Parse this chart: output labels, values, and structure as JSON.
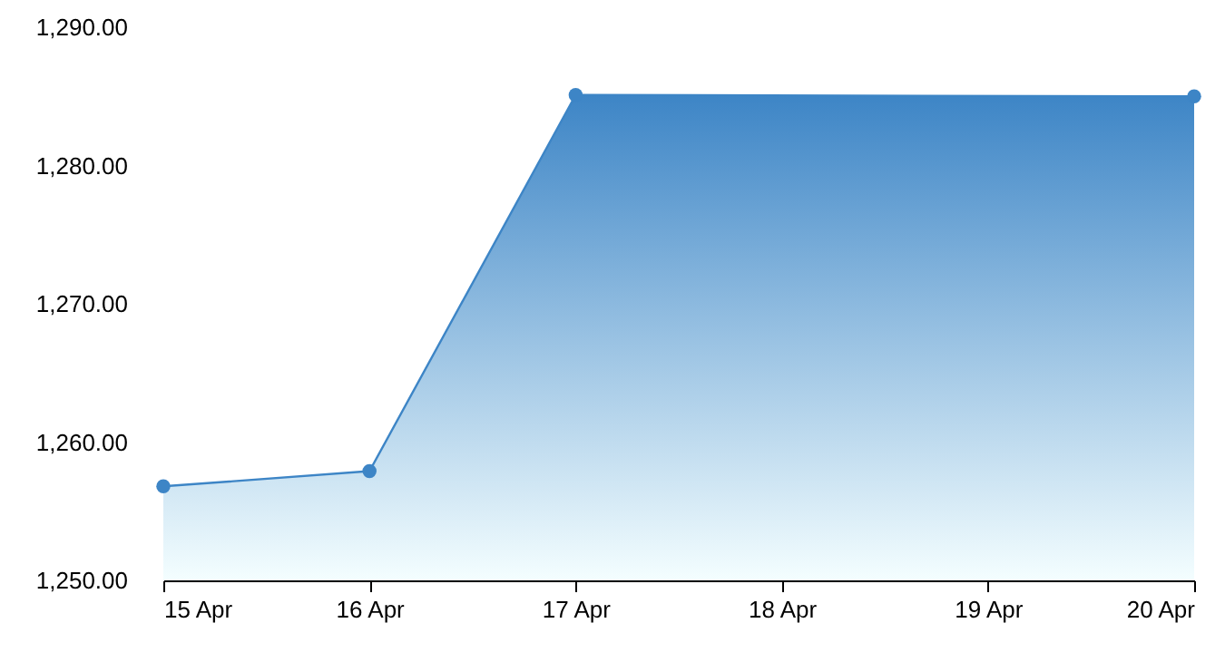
{
  "chart_data": {
    "type": "area",
    "x": [
      "--04-15",
      "--04-16",
      "--04-17",
      "--04-20"
    ],
    "series": [
      {
        "color": "#3d85c6",
        "values": [
          1256.8,
          1257.9,
          1285.1,
          1285
        ]
      }
    ],
    "xlim": [
      "--04-15",
      "--04-20"
    ],
    "xticks": [
      {
        "value": "--04-15",
        "label": "15 Apr"
      },
      {
        "value": "--04-16",
        "label": "16 Apr"
      },
      {
        "value": "--04-17",
        "label": "17 Apr"
      },
      {
        "value": "--04-18",
        "label": "18 Apr"
      },
      {
        "value": "--04-19",
        "label": "19 Apr"
      },
      {
        "value": "--04-20",
        "label": "20 Apr"
      }
    ],
    "ylim": [
      1250,
      1290
    ],
    "yticks": [
      {
        "value": 1250,
        "label": "1,250.00"
      },
      {
        "value": 1260,
        "label": "1,260.00"
      },
      {
        "value": 1270,
        "label": "1,270.00"
      },
      {
        "value": 1280,
        "label": "1,280.00"
      },
      {
        "value": 1290,
        "label": "1,290.00"
      }
    ],
    "grid": false,
    "marker": "circle",
    "line_style": "solid"
  }
}
